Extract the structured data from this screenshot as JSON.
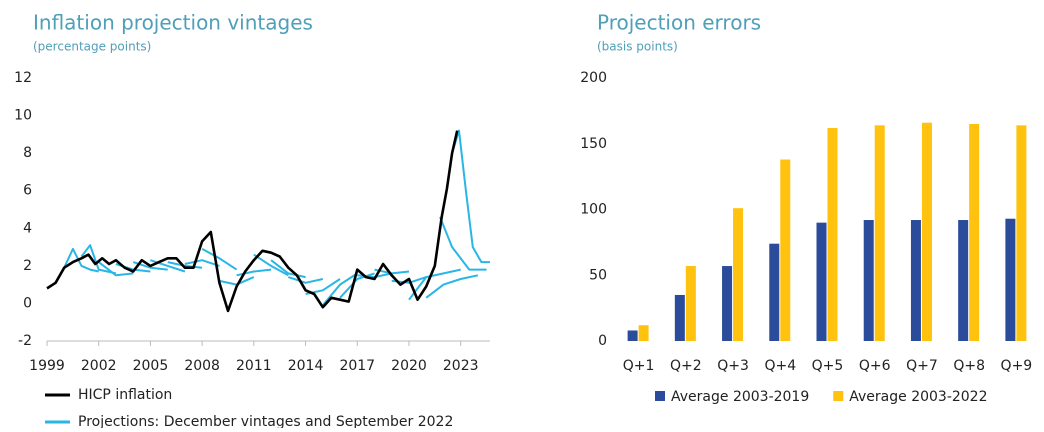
{
  "chart_data": [
    {
      "type": "line",
      "title": "Inflation projection vintages",
      "subtitle": "(percentage points)",
      "xlim": [
        1999,
        2024.7
      ],
      "xticks": [
        1999,
        2002,
        2005,
        2008,
        2011,
        2014,
        2017,
        2020,
        2023
      ],
      "ylim": [
        -2,
        12
      ],
      "yticks": [
        -2,
        0,
        2,
        4,
        6,
        8,
        10,
        12
      ],
      "grid": false,
      "series": [
        {
          "name": "HICP inflation",
          "color": "#000000",
          "x": [
            1999.0,
            1999.5,
            2000.0,
            2000.5,
            2001.0,
            2001.4,
            2001.8,
            2002.2,
            2002.6,
            2003.0,
            2003.5,
            2004.0,
            2004.5,
            2005.0,
            2005.5,
            2006.0,
            2006.5,
            2007.0,
            2007.5,
            2008.0,
            2008.5,
            2009.0,
            2009.5,
            2010.0,
            2010.5,
            2011.0,
            2011.5,
            2012.0,
            2012.5,
            2013.0,
            2013.5,
            2014.0,
            2014.5,
            2015.0,
            2015.5,
            2016.0,
            2016.5,
            2017.0,
            2017.5,
            2018.0,
            2018.5,
            2019.0,
            2019.5,
            2020.0,
            2020.5,
            2021.0,
            2021.5,
            2021.9,
            2022.2,
            2022.5,
            2022.8
          ],
          "values": [
            0.8,
            1.1,
            1.9,
            2.2,
            2.4,
            2.6,
            2.1,
            2.4,
            2.1,
            2.3,
            1.9,
            1.7,
            2.3,
            2.0,
            2.2,
            2.4,
            2.4,
            1.9,
            1.9,
            3.3,
            3.8,
            1.1,
            -0.4,
            0.9,
            1.7,
            2.3,
            2.8,
            2.7,
            2.5,
            1.9,
            1.5,
            0.7,
            0.5,
            -0.2,
            0.3,
            0.2,
            0.1,
            1.8,
            1.4,
            1.3,
            2.1,
            1.5,
            1.0,
            1.3,
            0.2,
            0.9,
            2.0,
            4.6,
            6.1,
            8.0,
            9.2
          ]
        },
        {
          "name": "Projections: December vintages and September 2022",
          "color": "#29b6e6",
          "lines": [
            {
              "x": [
                2000.0,
                2000.5,
                2001.0,
                2001.5,
                2002.0
              ],
              "values": [
                1.9,
                2.9,
                2.0,
                1.8,
                1.7
              ]
            },
            {
              "x": [
                2001.0,
                2001.5,
                2002.0,
                2003.0
              ],
              "values": [
                2.5,
                3.1,
                1.8,
                1.6
              ]
            },
            {
              "x": [
                2002.0,
                2003.0,
                2004.0
              ],
              "values": [
                2.2,
                1.5,
                1.6
              ]
            },
            {
              "x": [
                2003.0,
                2004.0,
                2005.0
              ],
              "values": [
                2.1,
                1.8,
                1.7
              ]
            },
            {
              "x": [
                2004.0,
                2005.0,
                2006.0
              ],
              "values": [
                2.2,
                1.9,
                1.8
              ]
            },
            {
              "x": [
                2005.0,
                2006.0,
                2007.0
              ],
              "values": [
                2.3,
                2.0,
                1.7
              ]
            },
            {
              "x": [
                2006.0,
                2007.0,
                2008.0
              ],
              "values": [
                2.2,
                2.0,
                1.9
              ]
            },
            {
              "x": [
                2007.0,
                2008.0,
                2009.0
              ],
              "values": [
                2.1,
                2.3,
                2.0
              ]
            },
            {
              "x": [
                2008.0,
                2009.0,
                2010.0
              ],
              "values": [
                2.9,
                2.4,
                1.8
              ]
            },
            {
              "x": [
                2009.0,
                2010.0,
                2011.0
              ],
              "values": [
                1.2,
                1.0,
                1.4
              ]
            },
            {
              "x": [
                2010.0,
                2011.0,
                2012.0
              ],
              "values": [
                1.5,
                1.7,
                1.8
              ]
            },
            {
              "x": [
                2011.0,
                2012.0,
                2013.0
              ],
              "values": [
                2.6,
                2.0,
                1.5
              ]
            },
            {
              "x": [
                2012.0,
                2013.0,
                2014.0
              ],
              "values": [
                2.3,
                1.6,
                1.4
              ]
            },
            {
              "x": [
                2013.0,
                2014.0,
                2015.0
              ],
              "values": [
                1.4,
                1.1,
                1.3
              ]
            },
            {
              "x": [
                2014.0,
                2015.0,
                2016.0
              ],
              "values": [
                0.5,
                0.7,
                1.3
              ]
            },
            {
              "x": [
                2015.0,
                2016.0,
                2017.0
              ],
              "values": [
                -0.1,
                1.0,
                1.6
              ]
            },
            {
              "x": [
                2016.0,
                2017.0,
                2018.0
              ],
              "values": [
                0.3,
                1.3,
                1.6
              ]
            },
            {
              "x": [
                2017.0,
                2018.0,
                2019.0
              ],
              "values": [
                1.5,
                1.4,
                1.6
              ]
            },
            {
              "x": [
                2018.0,
                2019.0,
                2020.0
              ],
              "values": [
                1.8,
                1.6,
                1.7
              ]
            },
            {
              "x": [
                2019.0,
                2020.0,
                2021.0
              ],
              "values": [
                1.2,
                1.1,
                1.4
              ]
            },
            {
              "x": [
                2020.0,
                2021.0,
                2022.0,
                2023.0
              ],
              "values": [
                0.2,
                1.4,
                1.6,
                1.8
              ]
            },
            {
              "x": [
                2021.0,
                2022.0,
                2023.0,
                2024.0
              ],
              "values": [
                0.3,
                1.0,
                1.3,
                1.5
              ]
            },
            {
              "x": [
                2021.8,
                2022.5,
                2023.5,
                2024.5
              ],
              "values": [
                4.6,
                3.0,
                1.8,
                1.8
              ]
            },
            {
              "x": [
                2022.5,
                2022.9,
                2023.3,
                2023.7,
                2024.2,
                2024.7
              ],
              "values": [
                8.0,
                9.2,
                6.0,
                3.0,
                2.2,
                2.2
              ]
            }
          ]
        }
      ]
    },
    {
      "type": "bar",
      "title": "Projection errors",
      "subtitle": "(basis points)",
      "categories": [
        "Q+1",
        "Q+2",
        "Q+3",
        "Q+4",
        "Q+5",
        "Q+6",
        "Q+7",
        "Q+8",
        "Q+9"
      ],
      "ylim": [
        0,
        200
      ],
      "yticks": [
        0,
        50,
        100,
        150,
        200
      ],
      "grid": false,
      "series": [
        {
          "name": "Average 2003-2019",
          "color": "#2a4c9b",
          "values": [
            8,
            35,
            57,
            74,
            90,
            92,
            92,
            92,
            93
          ]
        },
        {
          "name": "Average 2003-2022",
          "color": "#ffc20e",
          "values": [
            12,
            57,
            101,
            138,
            162,
            164,
            166,
            165,
            164
          ]
        }
      ]
    }
  ]
}
